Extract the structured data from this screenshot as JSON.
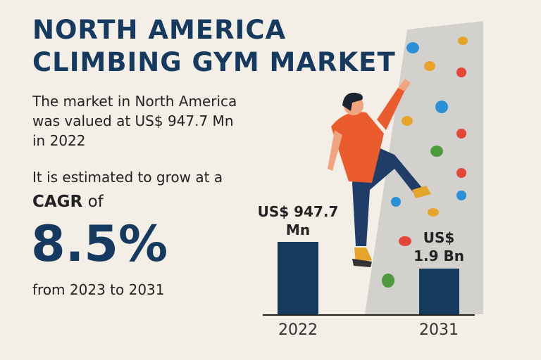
{
  "title_line1": "NORTH AMERICA",
  "title_line2": "CLIMBING GYM MARKET",
  "intro_line1": "The market in North America",
  "intro_line2": "was valued at US$ 947.7 Mn",
  "intro_line3": "in 2022",
  "growth_text": "It is estimated to grow at a",
  "cagr_label": "CAGR",
  "cagr_of": " of",
  "cagr_value": "8.5%",
  "period_text": "from 2023 to 2031",
  "colors": {
    "title": "#163a5f",
    "bar": "#143a5e",
    "background": "#f3efe7"
  },
  "chart_data": {
    "type": "bar",
    "categories": [
      "2022",
      "2031"
    ],
    "values": [
      947.7,
      1900
    ],
    "unit": "US$ Mn",
    "data_labels": [
      [
        "US$ 947.7",
        "Mn"
      ],
      [
        "US$",
        "1.9 Bn"
      ]
    ]
  }
}
